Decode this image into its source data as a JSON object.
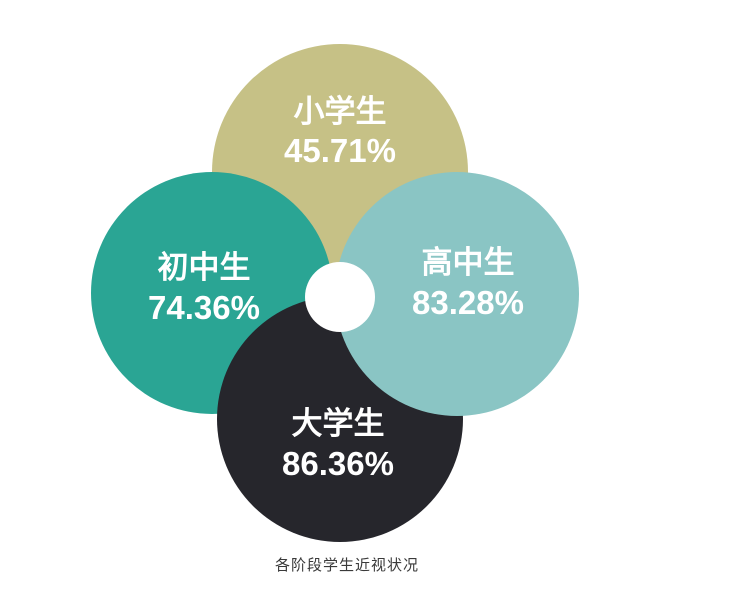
{
  "page": {
    "background": "#ffffff"
  },
  "chart_data": {
    "type": "bubble",
    "subtype": "overlapping-circle-infographic",
    "title": "各阶段学生近视状况",
    "title_position": "bottom-center",
    "title_color": "#3a3a3a",
    "grid": false,
    "legend_position": "none",
    "value_unit": "%",
    "label_text_color": "#ffffff",
    "center_hole_color": "#ffffff",
    "series": [
      {
        "label": "小学生",
        "value": 45.71,
        "value_display": "45.71%",
        "color": "#c6c186",
        "position": "top"
      },
      {
        "label": "初中生",
        "value": 74.36,
        "value_display": "74.36%",
        "color": "#2aa594",
        "position": "left"
      },
      {
        "label": "高中生",
        "value": 83.28,
        "value_display": "83.28%",
        "color": "#8ac5c4",
        "position": "right"
      },
      {
        "label": "大学生",
        "value": 86.36,
        "value_display": "86.36%",
        "color": "#26262c",
        "position": "bottom"
      }
    ]
  }
}
